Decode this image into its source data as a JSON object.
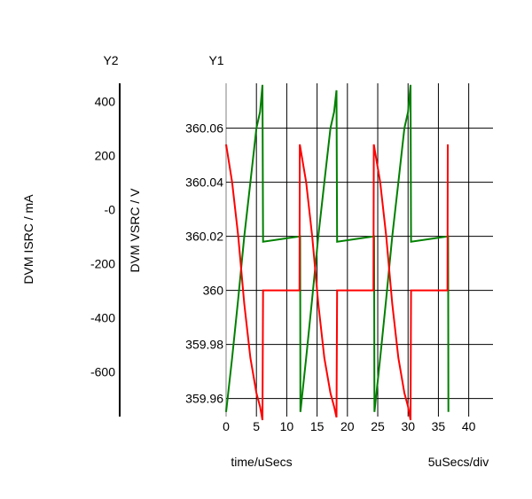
{
  "chart_data": {
    "type": "line",
    "y1_title": "Y1",
    "y2_title": "Y2",
    "ylabel": "DVM VSRC / V",
    "y2label": "DVM ISRC / mA",
    "xlabel": "time/uSecs",
    "x_scale_label": "5uSecs/div",
    "xlim": [
      0,
      44
    ],
    "ylim": [
      359.9533,
      360.0766
    ],
    "y2lim": [
      -766,
      467
    ],
    "x_ticks": [
      0,
      5,
      10,
      15,
      20,
      25,
      30,
      35,
      40
    ],
    "x_tick_labels": [
      "0",
      "5",
      "10",
      "15",
      "20",
      "25",
      "30",
      "35",
      "40"
    ],
    "y_ticks": [
      360.06,
      360.04,
      360.02,
      360,
      359.98,
      359.96
    ],
    "y_tick_labels": [
      "360.06",
      "360.04",
      "360.02",
      "360",
      "359.98",
      "359.96"
    ],
    "y2_ticks": [
      400,
      200,
      0,
      -200,
      -400,
      -600
    ],
    "y2_tick_labels": [
      "400",
      "200",
      "-0",
      "-200",
      "-400",
      "-600"
    ],
    "grid": true,
    "series": [
      {
        "name": "green trace",
        "color": "#008000",
        "points": [
          [
            0,
            359.955
          ],
          [
            1,
            359.975
          ],
          [
            2,
            359.997
          ],
          [
            3,
            360.02
          ],
          [
            4,
            360.04
          ],
          [
            5,
            360.06
          ],
          [
            5.6,
            360.066
          ],
          [
            6,
            360.076
          ],
          [
            6.1,
            360.018
          ],
          [
            12.2,
            360.02
          ],
          [
            12.25,
            359.955
          ],
          [
            13.2,
            359.975
          ],
          [
            14.2,
            359.997
          ],
          [
            15.2,
            360.02
          ],
          [
            16.2,
            360.04
          ],
          [
            17.2,
            360.06
          ],
          [
            17.8,
            360.066
          ],
          [
            18.2,
            360.074
          ],
          [
            18.3,
            360.018
          ],
          [
            24.4,
            360.02
          ],
          [
            24.45,
            359.955
          ],
          [
            25.4,
            359.975
          ],
          [
            26.4,
            359.997
          ],
          [
            27.4,
            360.02
          ],
          [
            28.4,
            360.04
          ],
          [
            29.4,
            360.06
          ],
          [
            30,
            360.066
          ],
          [
            30.4,
            360.076
          ],
          [
            30.5,
            360.018
          ],
          [
            36.6,
            360.02
          ],
          [
            36.65,
            359.955
          ]
        ]
      },
      {
        "name": "red trace",
        "color": "#ff0000",
        "points": [
          [
            0,
            360.054
          ],
          [
            1,
            360.04
          ],
          [
            2,
            360.02
          ],
          [
            3,
            359.995
          ],
          [
            4,
            359.975
          ],
          [
            5,
            359.962
          ],
          [
            5.6,
            359.957
          ],
          [
            6,
            359.952
          ],
          [
            6.1,
            360
          ],
          [
            12.1,
            360
          ],
          [
            12.15,
            360.054
          ],
          [
            13.2,
            360.04
          ],
          [
            14.2,
            360.02
          ],
          [
            15.2,
            359.995
          ],
          [
            16.2,
            359.975
          ],
          [
            17.2,
            359.962
          ],
          [
            17.8,
            359.957
          ],
          [
            18.2,
            359.953
          ],
          [
            18.3,
            360
          ],
          [
            24.3,
            360
          ],
          [
            24.35,
            360.054
          ],
          [
            25.4,
            360.04
          ],
          [
            26.4,
            360.02
          ],
          [
            27.4,
            359.995
          ],
          [
            28.4,
            359.975
          ],
          [
            29.4,
            359.962
          ],
          [
            30,
            359.957
          ],
          [
            30.4,
            359.952
          ],
          [
            30.5,
            360
          ],
          [
            36.5,
            360
          ],
          [
            36.55,
            360.054
          ]
        ]
      }
    ]
  }
}
